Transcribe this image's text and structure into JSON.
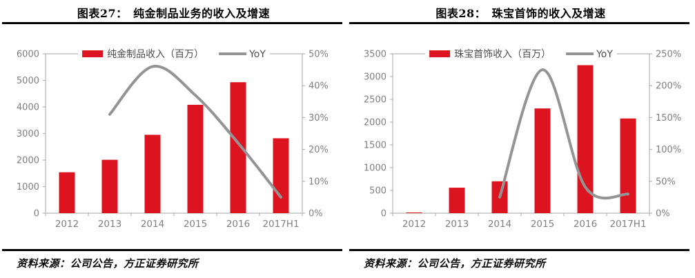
{
  "panels": [
    {
      "title": "图表27：　纯金制品业务的收入及增速",
      "source": "资料来源：公司公告，方正证券研究所"
    },
    {
      "title": "图表28：　珠宝首饰的收入及增速",
      "source": "资料来源：公司公告，方正证券研究所"
    }
  ],
  "colors": {
    "bar_red": "#dc1420",
    "line_gray": "#949494",
    "axis_gray": "#b3b3b3",
    "tick_label_gray": "#7f7f7f",
    "legend_text": "#4d4d4d",
    "rule_black": "#000000",
    "background": "#ffffff"
  },
  "chart_data": [
    {
      "type": "bar",
      "title": "图表27：纯金制品业务的收入及增速",
      "categories": [
        "2012",
        "2013",
        "2014",
        "2015",
        "2016",
        "2017H1"
      ],
      "series": [
        {
          "name": "纯金制品收入（百万）",
          "type": "bar",
          "axis": "left",
          "values": [
            1540,
            2010,
            2950,
            4080,
            4930,
            2820
          ]
        },
        {
          "name": "YoY",
          "type": "line",
          "axis": "right",
          "unit": "%",
          "values": [
            null,
            31,
            46,
            37,
            22,
            5
          ]
        }
      ],
      "left_axis": {
        "min": 0,
        "max": 6000,
        "step": 1000,
        "ticks": [
          "0",
          "1000",
          "2000",
          "3000",
          "4000",
          "5000",
          "6000"
        ]
      },
      "right_axis": {
        "min": 0,
        "max": 50,
        "step": 10,
        "ticks": [
          "0%",
          "10%",
          "20%",
          "30%",
          "40%",
          "50%"
        ]
      },
      "legend_position": "top",
      "grid": false,
      "xlabel": "",
      "ylabel": ""
    },
    {
      "type": "bar",
      "title": "图表28：珠宝首饰的收入及增速",
      "categories": [
        "2012",
        "2013",
        "2014",
        "2015",
        "2016",
        "2017H1"
      ],
      "series": [
        {
          "name": "珠宝首饰收入（百万）",
          "type": "bar",
          "axis": "left",
          "values": [
            15,
            560,
            700,
            2300,
            3250,
            2080
          ]
        },
        {
          "name": "YoY",
          "type": "line",
          "axis": "right",
          "unit": "%",
          "values": [
            null,
            null,
            25,
            225,
            41,
            30
          ]
        }
      ],
      "left_axis": {
        "min": 0,
        "max": 3500,
        "step": 500,
        "ticks": [
          "0",
          "500",
          "1000",
          "1500",
          "2000",
          "2500",
          "3000",
          "3500"
        ]
      },
      "right_axis": {
        "min": 0,
        "max": 250,
        "step": 50,
        "ticks": [
          "0%",
          "50%",
          "100%",
          "150%",
          "200%",
          "250%"
        ]
      },
      "legend_position": "top",
      "grid": false,
      "xlabel": "",
      "ylabel": ""
    }
  ]
}
